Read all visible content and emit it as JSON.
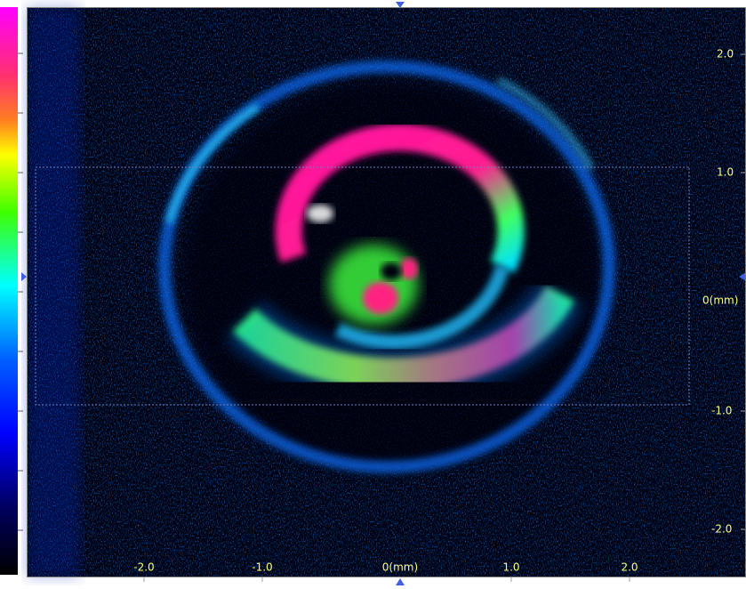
{
  "y_axis_labels": [
    "2.0",
    "1.0",
    "0(mm)",
    "-1.0",
    "-2.0"
  ],
  "x_axis_labels": [
    "-2.0",
    "-1.0",
    "0(mm)",
    "1.0",
    "2.0"
  ]
}
